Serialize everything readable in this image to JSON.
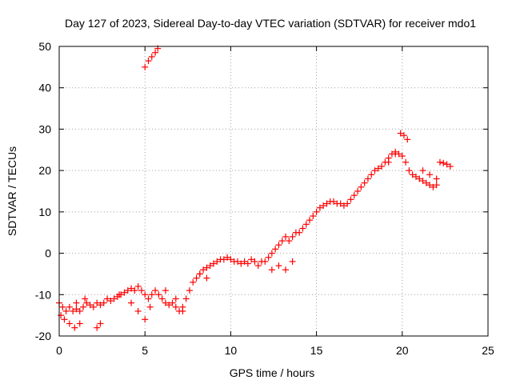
{
  "chart_data": {
    "type": "scatter",
    "title": "Day 127 of 2023, Sidereal Day-to-day VTEC variation (SDTVAR) for receiver mdo1",
    "xlabel": "GPS time / hours",
    "ylabel": "SDTVAR / TECUs",
    "xlim": [
      0,
      25
    ],
    "ylim": [
      -20,
      50
    ],
    "grid": true,
    "xticks": [
      0,
      5,
      10,
      15,
      20,
      25
    ],
    "yticks": [
      -20,
      -10,
      0,
      10,
      20,
      30,
      40,
      50
    ],
    "xtick_labels": [
      "0",
      "5",
      "10",
      "15",
      "20",
      "25"
    ],
    "ytick_labels": [
      "-20",
      "-10",
      "0",
      "10",
      "20",
      "30",
      "40",
      "50"
    ],
    "marker": "+",
    "series": [
      {
        "name": "mdo1",
        "color": "#ff0000",
        "x": [
          0.0,
          0.2,
          0.4,
          0.6,
          0.8,
          1.0,
          1.2,
          1.4,
          1.6,
          1.8,
          2.0,
          2.2,
          2.4,
          2.6,
          2.8,
          3.0,
          3.2,
          3.4,
          3.6,
          3.8,
          4.0,
          4.2,
          4.4,
          4.6,
          4.8,
          5.0,
          5.2,
          5.4,
          5.6,
          5.8,
          6.0,
          6.2,
          6.4,
          6.6,
          6.8,
          7.0,
          7.2,
          7.4,
          7.6,
          7.8,
          8.0,
          8.2,
          8.4,
          8.6,
          8.8,
          9.0,
          9.2,
          9.4,
          9.6,
          9.8,
          10.0,
          10.2,
          10.4,
          10.6,
          10.8,
          11.0,
          11.2,
          11.4,
          11.6,
          11.8,
          12.0,
          12.2,
          12.4,
          12.6,
          12.8,
          13.0,
          13.2,
          13.4,
          13.6,
          13.8,
          14.0,
          14.2,
          14.4,
          14.6,
          14.8,
          15.0,
          15.2,
          15.4,
          15.6,
          15.8,
          16.0,
          16.2,
          16.4,
          16.6,
          16.8,
          17.0,
          17.2,
          17.4,
          17.6,
          17.8,
          18.0,
          18.2,
          18.4,
          18.6,
          18.8,
          19.0,
          19.2,
          19.4,
          19.6,
          19.8,
          20.0,
          20.2,
          20.4,
          20.6,
          20.8,
          21.0,
          21.2,
          21.4,
          21.6,
          21.8,
          22.0,
          22.2,
          22.4,
          22.6,
          22.8,
          0.1,
          0.3,
          0.6,
          0.9,
          1.2,
          2.2,
          2.4,
          1.0,
          1.5,
          3.5,
          4.2,
          4.6,
          5.0,
          5.3,
          6.2,
          6.8,
          7.2,
          8.2,
          8.6,
          12.4,
          12.8,
          13.2,
          13.6,
          5.0,
          5.2,
          5.4,
          5.6,
          5.75,
          19.9,
          20.1,
          20.3,
          19.2,
          19.6,
          21.2,
          21.6,
          22.0
        ],
        "y": [
          -12,
          -13,
          -14,
          -13,
          -14,
          -13.5,
          -14,
          -13,
          -12,
          -12.5,
          -13,
          -12,
          -12.5,
          -12,
          -11,
          -11.5,
          -11,
          -10.5,
          -10,
          -9.5,
          -9,
          -8.5,
          -9,
          -8,
          -9,
          -10,
          -11,
          -10,
          -9,
          -10,
          -11,
          -12,
          -12.5,
          -12,
          -13,
          -14,
          -13,
          -11,
          -9,
          -7,
          -6,
          -5,
          -4,
          -3.5,
          -3,
          -2.5,
          -2,
          -1.5,
          -1.5,
          -1,
          -1.5,
          -2,
          -2,
          -2.5,
          -2,
          -2.5,
          -1.5,
          -2,
          -3,
          -2,
          -2,
          -1,
          0,
          1,
          2,
          3,
          4,
          3,
          4,
          5,
          5,
          6,
          7,
          8,
          9,
          10,
          11,
          11.5,
          12,
          12.5,
          12.5,
          12,
          12,
          11.5,
          12,
          13,
          14,
          15,
          16,
          17,
          18,
          19,
          20,
          20.5,
          21,
          22,
          23,
          24,
          24.5,
          24,
          23.5,
          22,
          20,
          19,
          18.5,
          18,
          17.5,
          17,
          16.5,
          16,
          16.5,
          22,
          21.8,
          21.5,
          21,
          -15,
          -16,
          -17,
          -18,
          -17,
          -18,
          -17,
          -12,
          -11,
          -10,
          -12,
          -14,
          -16,
          -13,
          -9,
          -11,
          -14,
          -5,
          -6,
          -4,
          -3,
          -4,
          -2,
          45,
          46.5,
          47.5,
          48.5,
          49.5,
          29,
          28.5,
          27.5,
          22,
          24,
          20,
          19,
          18
        ]
      }
    ]
  }
}
